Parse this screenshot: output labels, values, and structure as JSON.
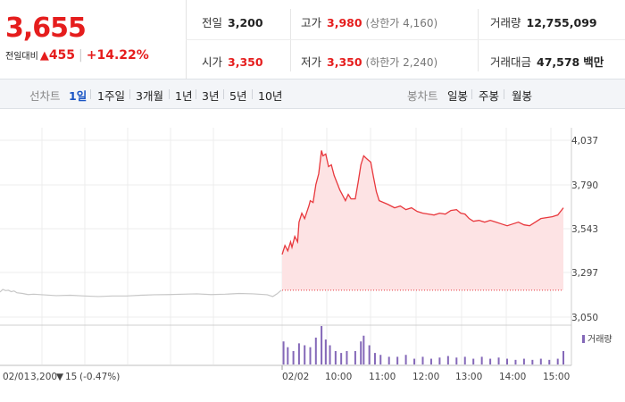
{
  "quote": {
    "price": "3,655",
    "change_label": "전일대비",
    "change_arrow": "▲",
    "change_amount": "455",
    "change_pct": "+14.22%",
    "stats": {
      "prev_close": {
        "label": "전일",
        "value": "3,200"
      },
      "high": {
        "label": "고가",
        "value": "3,980",
        "note": "(상한가 4,160)"
      },
      "volume": {
        "label": "거래량",
        "value": "12,755,099"
      },
      "open": {
        "label": "시가",
        "value": "3,350"
      },
      "low": {
        "label": "저가",
        "value": "3,350",
        "note": "(하한가 2,240)"
      },
      "turnover": {
        "label": "거래대금",
        "value": "47,578",
        "unit": "백만"
      }
    }
  },
  "tabs": {
    "line_label": "선차트",
    "line": [
      "1일",
      "1주일",
      "3개월",
      "1년",
      "3년",
      "5년",
      "10년"
    ],
    "selected": "1일",
    "candle_label": "봉차트",
    "candle": [
      "일봉",
      "주봉",
      "월봉"
    ]
  },
  "colors": {
    "up": "#e51d1d",
    "price_line": "#e8383d",
    "area_fill": "#fde3e4",
    "prev_line": "#c7c7c7",
    "volume_bar": "#8468b8",
    "selected_tab": "#1a55c4",
    "down": "#1a55c4"
  },
  "chart_data": {
    "type": "line",
    "y_ticks": [
      "4,037",
      "3,790",
      "3,543",
      "3,297",
      "3,050"
    ],
    "ylim": [
      3050,
      4037
    ],
    "x_ticks": [
      "02/01",
      "02/02",
      "10:00",
      "11:00",
      "12:00",
      "13:00",
      "14:00",
      "15:00"
    ],
    "legend": "거래량",
    "prev_day": {
      "date": "02/01",
      "close": "3,200",
      "change": "15",
      "change_pct": "(-0.47%)",
      "arrow": "▼"
    },
    "series": [
      {
        "values": [
          [
            0,
            3190
          ],
          [
            0.01,
            3205
          ],
          [
            0.02,
            3198
          ],
          [
            0.03,
            3200
          ],
          [
            0.04,
            3192
          ],
          [
            0.05,
            3196
          ],
          [
            0.06,
            3186
          ],
          [
            0.08,
            3182
          ],
          [
            0.1,
            3176
          ],
          [
            0.12,
            3178
          ],
          [
            0.15,
            3175
          ],
          [
            0.2,
            3170
          ],
          [
            0.25,
            3172
          ],
          [
            0.3,
            3168
          ],
          [
            0.35,
            3165
          ],
          [
            0.4,
            3168
          ],
          [
            0.45,
            3168
          ],
          [
            0.5,
            3172
          ],
          [
            0.55,
            3175
          ],
          [
            0.6,
            3176
          ],
          [
            0.65,
            3178
          ],
          [
            0.7,
            3180
          ],
          [
            0.75,
            3176
          ],
          [
            0.8,
            3178
          ],
          [
            0.85,
            3182
          ],
          [
            0.9,
            3180
          ],
          [
            0.95,
            3175
          ],
          [
            0.97,
            3165
          ],
          [
            0.985,
            3180
          ],
          [
            1,
            3200
          ]
        ]
      },
      {
        "values": [
          [
            0,
            3400
          ],
          [
            0.01,
            3450
          ],
          [
            0.02,
            3420
          ],
          [
            0.03,
            3470
          ],
          [
            0.035,
            3440
          ],
          [
            0.045,
            3500
          ],
          [
            0.055,
            3470
          ],
          [
            0.06,
            3580
          ],
          [
            0.07,
            3630
          ],
          [
            0.08,
            3600
          ],
          [
            0.095,
            3670
          ],
          [
            0.1,
            3700
          ],
          [
            0.11,
            3690
          ],
          [
            0.12,
            3790
          ],
          [
            0.13,
            3850
          ],
          [
            0.14,
            3980
          ],
          [
            0.145,
            3950
          ],
          [
            0.155,
            3960
          ],
          [
            0.165,
            3890
          ],
          [
            0.175,
            3900
          ],
          [
            0.185,
            3840
          ],
          [
            0.195,
            3800
          ],
          [
            0.205,
            3760
          ],
          [
            0.215,
            3730
          ],
          [
            0.225,
            3700
          ],
          [
            0.235,
            3735
          ],
          [
            0.245,
            3710
          ],
          [
            0.26,
            3710
          ],
          [
            0.27,
            3800
          ],
          [
            0.28,
            3900
          ],
          [
            0.29,
            3950
          ],
          [
            0.3,
            3935
          ],
          [
            0.315,
            3915
          ],
          [
            0.325,
            3830
          ],
          [
            0.335,
            3750
          ],
          [
            0.345,
            3700
          ],
          [
            0.36,
            3690
          ],
          [
            0.375,
            3680
          ],
          [
            0.4,
            3660
          ],
          [
            0.42,
            3670
          ],
          [
            0.44,
            3650
          ],
          [
            0.46,
            3660
          ],
          [
            0.48,
            3640
          ],
          [
            0.5,
            3630
          ],
          [
            0.52,
            3625
          ],
          [
            0.54,
            3620
          ],
          [
            0.56,
            3630
          ],
          [
            0.58,
            3625
          ],
          [
            0.6,
            3645
          ],
          [
            0.62,
            3650
          ],
          [
            0.635,
            3630
          ],
          [
            0.65,
            3625
          ],
          [
            0.665,
            3600
          ],
          [
            0.68,
            3585
          ],
          [
            0.7,
            3590
          ],
          [
            0.72,
            3580
          ],
          [
            0.74,
            3590
          ],
          [
            0.76,
            3580
          ],
          [
            0.78,
            3570
          ],
          [
            0.8,
            3560
          ],
          [
            0.82,
            3570
          ],
          [
            0.84,
            3580
          ],
          [
            0.86,
            3565
          ],
          [
            0.88,
            3560
          ],
          [
            0.9,
            3580
          ],
          [
            0.92,
            3600
          ],
          [
            0.94,
            3605
          ],
          [
            0.96,
            3610
          ],
          [
            0.98,
            3620
          ],
          [
            1,
            3660
          ]
        ]
      }
    ],
    "volume": {
      "values": [
        [
          0.005,
          0.6
        ],
        [
          0.02,
          0.45
        ],
        [
          0.04,
          0.35
        ],
        [
          0.06,
          0.55
        ],
        [
          0.08,
          0.5
        ],
        [
          0.1,
          0.45
        ],
        [
          0.12,
          0.7
        ],
        [
          0.14,
          1.0
        ],
        [
          0.155,
          0.65
        ],
        [
          0.17,
          0.5
        ],
        [
          0.19,
          0.35
        ],
        [
          0.21,
          0.3
        ],
        [
          0.23,
          0.35
        ],
        [
          0.26,
          0.35
        ],
        [
          0.28,
          0.6
        ],
        [
          0.29,
          0.75
        ],
        [
          0.31,
          0.5
        ],
        [
          0.33,
          0.3
        ],
        [
          0.35,
          0.25
        ],
        [
          0.38,
          0.2
        ],
        [
          0.41,
          0.2
        ],
        [
          0.44,
          0.25
        ],
        [
          0.47,
          0.15
        ],
        [
          0.5,
          0.2
        ],
        [
          0.53,
          0.15
        ],
        [
          0.56,
          0.18
        ],
        [
          0.59,
          0.22
        ],
        [
          0.62,
          0.18
        ],
        [
          0.65,
          0.2
        ],
        [
          0.68,
          0.15
        ],
        [
          0.71,
          0.2
        ],
        [
          0.74,
          0.15
        ],
        [
          0.77,
          0.18
        ],
        [
          0.8,
          0.15
        ],
        [
          0.83,
          0.12
        ],
        [
          0.86,
          0.15
        ],
        [
          0.89,
          0.12
        ],
        [
          0.92,
          0.15
        ],
        [
          0.95,
          0.12
        ],
        [
          0.98,
          0.15
        ],
        [
          1,
          0.35
        ]
      ]
    }
  }
}
